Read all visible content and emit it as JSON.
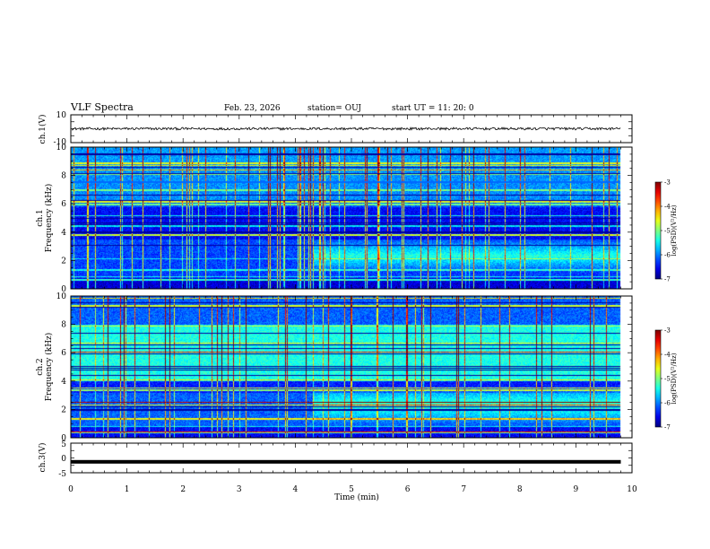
{
  "header": {
    "title": "VLF Spectra",
    "date": "Feb. 23, 2026",
    "station": "station= OUJ",
    "start": "start UT =  11: 20: 0"
  },
  "chart_data": [
    {
      "type": "line",
      "panel": "ch1-waveform",
      "ylabel": "ch.1(V)",
      "ylim": [
        -10,
        10
      ],
      "yticks": [
        "10",
        "-10"
      ],
      "x_range_min": [
        0,
        9.8
      ],
      "baseline_value": 0,
      "noise_amplitude": 0.9
    },
    {
      "type": "heatmap",
      "panel": "ch1-spectrogram",
      "ylabel_lines": [
        "ch.1",
        "Frequency (kHz)"
      ],
      "ylim_khz": [
        0,
        10
      ],
      "yticks": [
        "10",
        "8",
        "6",
        "4",
        "2",
        "0"
      ],
      "x_range_min": [
        0,
        9.8
      ],
      "colorbar": {
        "label": "log(PSD)(V²/Hz)",
        "ticks": [
          "-3",
          "-4",
          "-5",
          "-6",
          "-7"
        ],
        "range": [
          -7,
          -3
        ]
      },
      "emission_band_khz": [
        1.2,
        3.5
      ],
      "emission_onset_min": 4.3
    },
    {
      "type": "heatmap",
      "panel": "ch2-spectrogram",
      "ylabel_lines": [
        "ch.2",
        "Frequency (kHz)"
      ],
      "ylim_khz": [
        0,
        10
      ],
      "yticks": [
        "10",
        "8",
        "6",
        "4",
        "2",
        "0"
      ],
      "x_range_min": [
        0,
        9.8
      ],
      "colorbar": {
        "label": "log(PSD)(V²/Hz)",
        "ticks": [
          "-3",
          "-4",
          "-5",
          "-6",
          "-7"
        ],
        "range": [
          -7,
          -3
        ]
      },
      "emission_band_khz": [
        1.0,
        3.7
      ],
      "emission_onset_min": 4.3
    },
    {
      "type": "line",
      "panel": "ch3-waveform",
      "ylabel": "ch.3(V)",
      "ylim": [
        -5,
        5
      ],
      "yticks": [
        "5",
        "0",
        "-5"
      ],
      "x_range_min": [
        0,
        9.8
      ],
      "baseline_value": -1.3
    }
  ],
  "xaxis": {
    "label": "Time (min)",
    "range": [
      0,
      10
    ],
    "ticks": [
      "0",
      "1",
      "2",
      "3",
      "4",
      "5",
      "6",
      "7",
      "8",
      "9",
      "10"
    ]
  },
  "colors": {
    "background": "#ffffff",
    "axis": "#000000"
  }
}
